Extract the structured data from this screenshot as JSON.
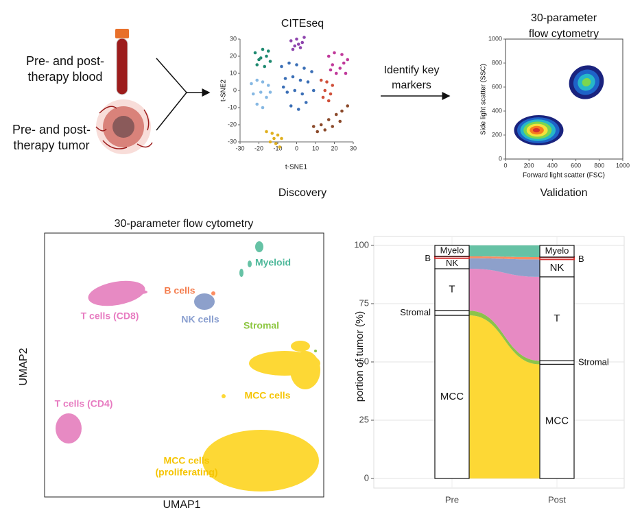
{
  "workflow": {
    "inputs": [
      [
        "Pre- and post-",
        "therapy blood"
      ],
      [
        "Pre- and post-",
        "therapy tumor"
      ]
    ],
    "step": [
      "Identify key",
      "markers"
    ],
    "discovery": "Discovery",
    "validation": "Validation"
  },
  "umap": {
    "title": "30-parameter flow cytometry",
    "xlabel": "UMAP1",
    "ylabel": "UMAP2",
    "labels": [
      "Myeloid",
      "B cells",
      "T cells (CD8)",
      "NK cells",
      "Stromal",
      "MCC cells",
      "T cells (CD4)",
      [
        "MCC cells",
        "(proliferating)"
      ]
    ]
  },
  "chart_data": [
    {
      "type": "scatter",
      "title": "CITEseq",
      "xlabel": "t-SNE1",
      "ylabel": "t-SNE2",
      "xlim": [
        -30,
        30
      ],
      "ylim": [
        -30,
        30
      ],
      "xticks": [
        -30,
        -20,
        -10,
        0,
        10,
        20,
        30
      ],
      "yticks": [
        -30,
        -20,
        -10,
        0,
        10,
        20,
        30
      ],
      "series": [
        {
          "color": "#1f8a70",
          "x": [
            -22,
            -20,
            -18,
            -16,
            -14,
            -21,
            -17,
            -15,
            -19
          ],
          "y": [
            22,
            18,
            24,
            20,
            17,
            15,
            14,
            23,
            19
          ]
        },
        {
          "color": "#8e44ad",
          "x": [
            -3,
            0,
            3,
            -1,
            2,
            4,
            -2,
            1
          ],
          "y": [
            29,
            30,
            28,
            26,
            25,
            31,
            24,
            27
          ]
        },
        {
          "color": "#c0399a",
          "x": [
            17,
            20,
            24,
            27,
            19,
            23,
            26,
            21,
            25,
            18
          ],
          "y": [
            20,
            22,
            21,
            18,
            15,
            13,
            10,
            10,
            16,
            12
          ]
        },
        {
          "color": "#86b8e3",
          "x": [
            -24,
            -21,
            -18,
            -15,
            -23,
            -19,
            -16,
            -21,
            -14,
            -18
          ],
          "y": [
            4,
            6,
            5,
            3,
            -2,
            -1,
            -4,
            -8,
            -1,
            -10
          ]
        },
        {
          "color": "#3b6fb6",
          "x": [
            -8,
            -4,
            0,
            4,
            8,
            -6,
            -2,
            2,
            6,
            -5,
            -1,
            3,
            -3,
            1,
            5,
            -7,
            9
          ],
          "y": [
            14,
            16,
            15,
            13,
            11,
            7,
            8,
            6,
            5,
            -1,
            0,
            -2,
            -9,
            -11,
            -7,
            2,
            0
          ]
        },
        {
          "color": "#d0503a",
          "x": [
            13,
            16,
            19,
            15,
            18,
            14,
            17
          ],
          "y": [
            6,
            5,
            3,
            0,
            -2,
            -4,
            -6
          ]
        },
        {
          "color": "#8b4a2b",
          "x": [
            9,
            13,
            17,
            21,
            24,
            27,
            15,
            19,
            23,
            11
          ],
          "y": [
            -21,
            -20,
            -17,
            -14,
            -12,
            -9,
            -23,
            -21,
            -18,
            -24
          ]
        },
        {
          "color": "#e0b020",
          "x": [
            -16,
            -13,
            -10,
            -8,
            -14,
            -11,
            -9,
            -12
          ],
          "y": [
            -24,
            -25,
            -26,
            -28,
            -30,
            -31,
            -33,
            -28
          ]
        }
      ]
    },
    {
      "type": "density",
      "title": [
        "30-parameter",
        "flow cytometry"
      ],
      "xlabel": "Forward light scatter (FSC)",
      "ylabel": "Side light scatter (SSC)",
      "xlim": [
        0,
        1000
      ],
      "ylim": [
        0,
        1000
      ],
      "xticks": [
        0,
        200,
        400,
        600,
        800,
        1000
      ],
      "yticks": [
        0,
        200,
        400,
        600,
        800,
        1000
      ],
      "series": [
        {
          "x": 260,
          "y": 240,
          "colors": [
            "#1a237e",
            "#1e63c8",
            "#26b7c9",
            "#7bd64f",
            "#f4e23a",
            "#f57c1f",
            "#d32f2f"
          ]
        },
        {
          "x": 690,
          "y": 640,
          "colors": [
            "#1a237e",
            "#1e63c8",
            "#26b7c9",
            "#7bd64f"
          ]
        }
      ]
    },
    {
      "type": "alluvial",
      "ylabel": "portion of tumor (%)",
      "categories": [
        "Pre",
        "Post"
      ],
      "ylim": [
        0,
        100
      ],
      "yticks": [
        0,
        25,
        50,
        75,
        100
      ],
      "grid": true,
      "series": [
        {
          "name": "MCC",
          "color": "#fdd835",
          "values": [
            70,
            49
          ]
        },
        {
          "name": "Stromal",
          "color": "#8bc34a",
          "values": [
            2,
            1.5
          ]
        },
        {
          "name": "T",
          "color": "#e78ac3",
          "values": [
            18,
            36
          ]
        },
        {
          "name": "NK",
          "color": "#8da0cb",
          "values": [
            4.5,
            7.5
          ]
        },
        {
          "name": "B",
          "color": "#fc8d62",
          "values": [
            0.8,
            1
          ]
        },
        {
          "name": "Myelo",
          "color": "#66c2a5",
          "values": [
            4.7,
            5
          ]
        }
      ]
    }
  ]
}
